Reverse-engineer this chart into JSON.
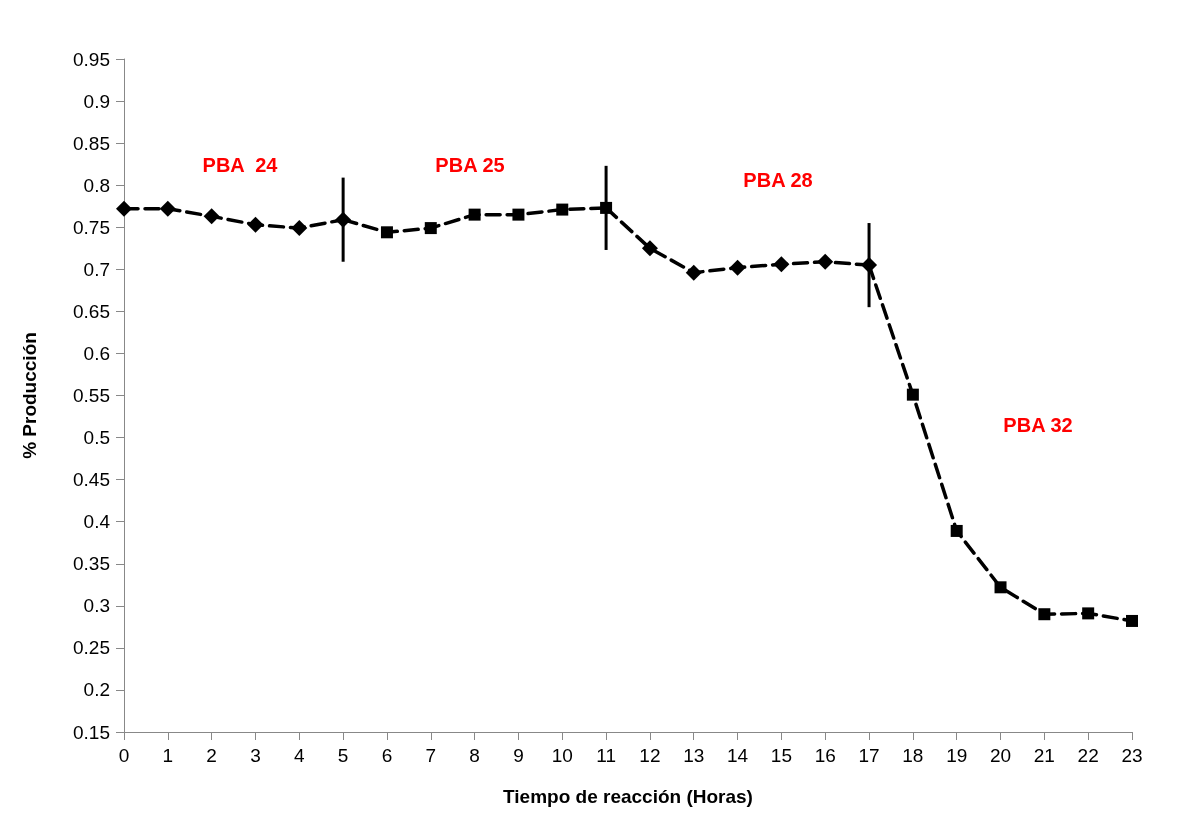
{
  "chart_data": {
    "type": "line",
    "xlabel": "Tiempo de reacción (Horas)",
    "ylabel": "% Producción",
    "xlim": [
      0,
      23
    ],
    "xticks": [
      0,
      1,
      2,
      3,
      4,
      5,
      6,
      7,
      8,
      9,
      10,
      11,
      12,
      13,
      14,
      15,
      16,
      17,
      18,
      19,
      20,
      21,
      22,
      23
    ],
    "ylim": [
      0.15,
      0.95
    ],
    "yticks": [
      0.15,
      0.2,
      0.25,
      0.3,
      0.35,
      0.4,
      0.45,
      0.5,
      0.55,
      0.6,
      0.65,
      0.7,
      0.75,
      0.8,
      0.85,
      0.9,
      0.95
    ],
    "grid": false,
    "line_style": "dashed",
    "series": [
      {
        "color": "#000000",
        "marker": "diamond",
        "x": [
          0,
          1,
          2,
          3,
          4,
          5
        ],
        "values": [
          0.772,
          0.772,
          0.763,
          0.753,
          0.749,
          0.759
        ],
        "errors": [
          null,
          null,
          null,
          null,
          null,
          0.05
        ]
      },
      {
        "color": "#000000",
        "marker": "square",
        "x": [
          5,
          6,
          7,
          8,
          9,
          10,
          11
        ],
        "values": [
          0.759,
          0.744,
          0.749,
          0.765,
          0.765,
          0.771,
          0.773
        ],
        "errors": [
          null,
          null,
          null,
          null,
          null,
          null,
          0.05
        ]
      },
      {
        "color": "#000000",
        "marker": "diamond",
        "x": [
          11,
          12,
          13,
          14,
          15,
          16,
          17
        ],
        "values": [
          0.773,
          0.725,
          0.696,
          0.702,
          0.706,
          0.709,
          0.705
        ],
        "errors": [
          null,
          null,
          null,
          null,
          null,
          null,
          0.05
        ]
      },
      {
        "color": "#000000",
        "marker": "square",
        "x": [
          17,
          18,
          19,
          20,
          21,
          22,
          23
        ],
        "values": [
          0.705,
          0.551,
          0.389,
          0.322,
          0.29,
          0.291,
          0.282
        ]
      }
    ],
    "annotations": [
      "PBA  24",
      "PBA 25",
      "PBA 28",
      "PBA 32"
    ]
  }
}
